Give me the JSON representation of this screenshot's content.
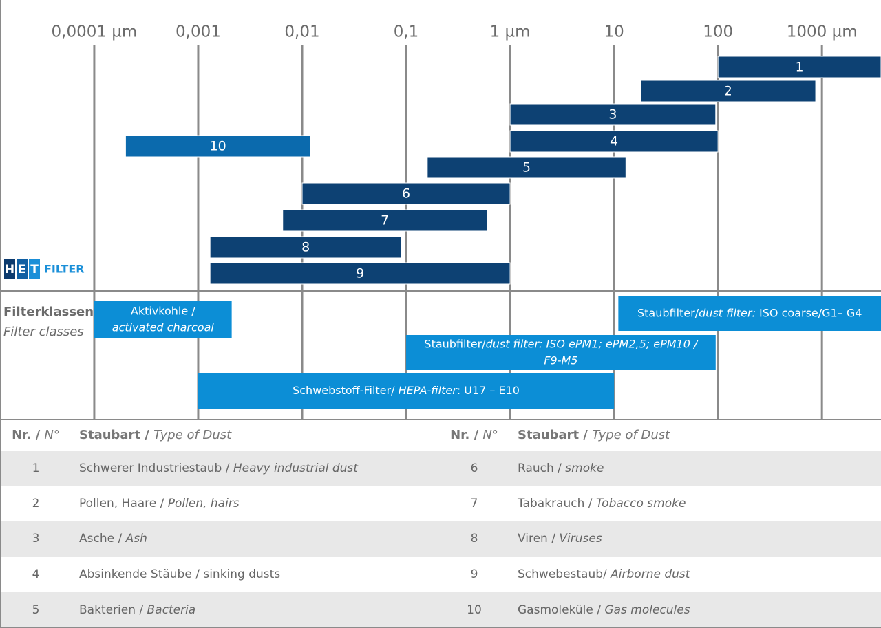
{
  "chart_data": {
    "type": "range-bar",
    "xscale": "log",
    "grid": true,
    "xlim": [
      1.24e-05,
      3700
    ],
    "xticks": [
      {
        "value": 0.0001,
        "label": "0,0001 µm"
      },
      {
        "value": 0.001,
        "label": "0,001"
      },
      {
        "value": 0.01,
        "label": "0,01"
      },
      {
        "value": 0.1,
        "label": "0,1"
      },
      {
        "value": 1,
        "label": "1 µm"
      },
      10,
      100,
      {
        "value": 1000,
        "label": "1000 µm"
      }
    ],
    "bars": [
      {
        "label": "1",
        "range": [
          100,
          3700
        ],
        "color": "#0d4173"
      },
      {
        "label": "2",
        "range": [
          18,
          870
        ],
        "color": "#0d4173"
      },
      {
        "label": "3",
        "range": [
          1,
          95
        ],
        "color": "#0d4173"
      },
      {
        "label": "4",
        "range": [
          1,
          100
        ],
        "color": "#0d4173"
      },
      {
        "label": "5",
        "range": [
          0.16,
          13
        ],
        "color": "#0d4173"
      },
      {
        "label": "6",
        "range": [
          0.01,
          1
        ],
        "color": "#0d4173"
      },
      {
        "label": "7",
        "range": [
          0.0065,
          0.6
        ],
        "color": "#0d4173"
      },
      {
        "label": "8",
        "range": [
          0.0013,
          0.09
        ],
        "color": "#0d4173"
      },
      {
        "label": "9",
        "range": [
          0.0013,
          1
        ],
        "color": "#0d4173"
      },
      {
        "label": "10",
        "range": [
          0.0002,
          0.012
        ],
        "color": "#0b6aad"
      }
    ],
    "filter_title": [
      {
        "text": "Filterklassen",
        "bold": true
      },
      {
        "text": "Filter classes",
        "italic": true
      }
    ],
    "filters": [
      {
        "range": [
          0.0001,
          0.0021
        ],
        "color": "#0c8ed6",
        "lines": [
          [
            {
              "text": "Aktivkohle /"
            }
          ],
          [
            {
              "text": "activated charcoal",
              "italic": true
            }
          ]
        ]
      },
      {
        "range": [
          11,
          3700
        ],
        "color": "#0c8ed6",
        "lines": [
          [
            {
              "text": "Staubfilter/"
            },
            {
              "text": "dust filter:",
              "italic": true
            },
            {
              "text": " ISO coarse/G1– G4"
            }
          ]
        ]
      },
      {
        "range": [
          0.1,
          95
        ],
        "color": "#0c8ed6",
        "lines": [
          [
            {
              "text": "Staubfilter/"
            },
            {
              "text": "dust filter: ISO ePM1; ePM2,5; ePM10 /",
              "italic": true
            }
          ],
          [
            {
              "text": "F9-M5",
              "italic": true
            }
          ]
        ]
      },
      {
        "range": [
          0.001,
          10
        ],
        "color": "#0c8ed6",
        "lines": [
          [
            {
              "text": "Schwebstoff-Filter/ "
            },
            {
              "text": "HEPA-filter",
              "italic": true
            },
            {
              "text": ": U17 – E10"
            }
          ]
        ]
      }
    ]
  },
  "logo": {
    "letters": [
      "H",
      "E",
      "T"
    ],
    "text": "FILTER"
  },
  "table": {
    "header": [
      [
        {
          "text": "Nr. / ",
          "bold": true
        },
        {
          "text": "N°",
          "italic": true
        }
      ],
      [
        {
          "text": "Staubart / ",
          "bold": true
        },
        {
          "text": "Type of Dust",
          "italic": true
        }
      ]
    ],
    "rows": [
      {
        "nr": "1",
        "type": [
          {
            "text": "Schwerer Industriestaub / "
          },
          {
            "text": "Heavy industrial dust",
            "italic": true
          }
        ]
      },
      {
        "nr": "2",
        "type": [
          {
            "text": "Pollen, Haare / "
          },
          {
            "text": "Pollen, hairs",
            "italic": true
          }
        ]
      },
      {
        "nr": "3",
        "type": [
          {
            "text": "Asche / "
          },
          {
            "text": "Ash",
            "italic": true
          }
        ]
      },
      {
        "nr": "4",
        "type": [
          {
            "text": "Absinkende Stäube / sinking dusts"
          }
        ]
      },
      {
        "nr": "5",
        "type": [
          {
            "text": "Bakterien / "
          },
          {
            "text": "Bacteria",
            "italic": true
          }
        ]
      },
      {
        "nr": "6",
        "type": [
          {
            "text": "Rauch / "
          },
          {
            "text": "smoke",
            "italic": true
          }
        ]
      },
      {
        "nr": "7",
        "type": [
          {
            "text": "Tabakrauch / "
          },
          {
            "text": "Tobacco smoke",
            "italic": true
          }
        ]
      },
      {
        "nr": "8",
        "type": [
          {
            "text": "Viren / "
          },
          {
            "text": "Viruses",
            "italic": true
          }
        ]
      },
      {
        "nr": "9",
        "type": [
          {
            "text": "Schwebestaub/ "
          },
          {
            "text": "Airborne dust",
            "italic": true
          }
        ]
      },
      {
        "nr": "10",
        "type": [
          {
            "text": "Gasmoleküle / "
          },
          {
            "text": "Gas molecules",
            "italic": true
          }
        ]
      }
    ]
  }
}
